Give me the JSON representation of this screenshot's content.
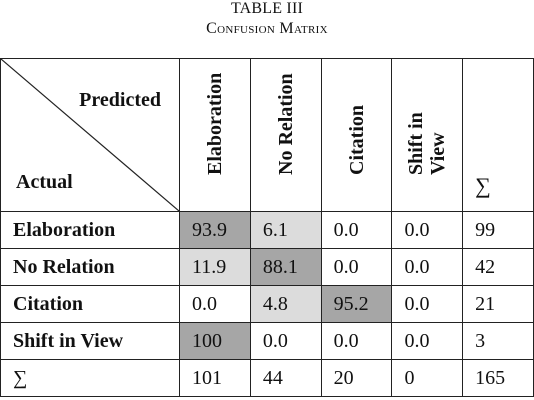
{
  "caption": {
    "line1": "TABLE III",
    "line2": "Confusion Matrix"
  },
  "corner": {
    "predicted": "Predicted",
    "actual": "Actual"
  },
  "columns": [
    "Elaboration",
    "No Relation",
    "Citation",
    "Shift in View",
    "∑"
  ],
  "column_lines": {
    "shift_line1": "Shift in",
    "shift_line2": "View"
  },
  "rows": [
    {
      "label": "Elaboration",
      "cells": [
        "93.9",
        "6.1",
        "0.0",
        "0.0",
        "99"
      ],
      "shade": [
        "dark",
        "light",
        "",
        "",
        ""
      ]
    },
    {
      "label": "No Relation",
      "cells": [
        "11.9",
        "88.1",
        "0.0",
        "0.0",
        "42"
      ],
      "shade": [
        "light",
        "dark",
        "",
        "",
        ""
      ]
    },
    {
      "label": "Citation",
      "cells": [
        "0.0",
        "4.8",
        "95.2",
        "0.0",
        "21"
      ],
      "shade": [
        "",
        "light",
        "dark",
        "",
        ""
      ]
    },
    {
      "label": "Shift in View",
      "cells": [
        "100",
        "0.0",
        "0.0",
        "0.0",
        "3"
      ],
      "shade": [
        "dark",
        "",
        "",
        "",
        ""
      ]
    },
    {
      "label": "∑",
      "cells": [
        "101",
        "44",
        "20",
        "0",
        "165"
      ],
      "shade": [
        "",
        "",
        "",
        "",
        ""
      ]
    }
  ],
  "colors": {
    "dark": "#a6a6a6",
    "light": "#dcdcdc"
  }
}
